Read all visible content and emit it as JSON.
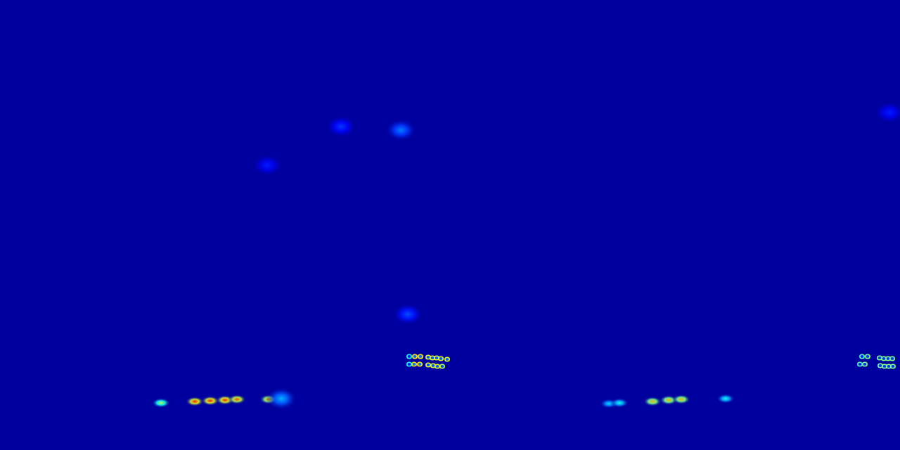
{
  "chart_data": [
    {
      "type": "heatmap",
      "tick_labels": false,
      "xlim": [
        0,
        640
      ],
      "ylim": [
        640,
        0
      ],
      "value_range": [
        0,
        1
      ],
      "blobs": {
        "x": [
          229,
          277,
          299,
          320,
          337,
          382,
          400,
          570,
          485,
          380,
          580
        ],
        "y": [
          573,
          571,
          570,
          569,
          568,
          568,
          567,
          185,
          180,
          235,
          447
        ],
        "values": [
          0.55,
          0.85,
          0.85,
          0.85,
          0.8,
          0.75,
          0.3,
          0.25,
          0.18,
          0.15,
          0.2
        ]
      },
      "rings": {
        "x": [
          582,
          590,
          598,
          609,
          615,
          621,
          627,
          636,
          582,
          589,
          597,
          609,
          616,
          622,
          629
        ],
        "y": [
          507,
          507,
          507,
          508,
          509,
          509,
          510,
          511,
          518,
          518,
          518,
          519,
          520,
          521,
          521
        ],
        "values": [
          0.4,
          0.65,
          0.65,
          0.6,
          0.6,
          0.6,
          0.6,
          0.6,
          0.4,
          0.65,
          0.65,
          0.6,
          0.6,
          0.6,
          0.55
        ]
      }
    },
    {
      "type": "heatmap",
      "tick_labels": false,
      "xlim": [
        0,
        640
      ],
      "ylim": [
        640,
        0
      ],
      "value_range": [
        0,
        1
      ],
      "blobs": {
        "x": [
          226,
          241,
          288,
          311,
          329,
          392,
          625
        ],
        "y": [
          574,
          573,
          571,
          569,
          568,
          567,
          160
        ],
        "values": [
          0.35,
          0.4,
          0.7,
          0.7,
          0.7,
          0.4,
          0.15
        ]
      },
      "rings": {
        "x": [
          586,
          594,
          611,
          617,
          623,
          629,
          583,
          590,
          612,
          618,
          624,
          630
        ],
        "y": [
          507,
          507,
          509,
          510,
          510,
          510,
          518,
          518,
          520,
          521,
          521,
          521
        ],
        "values": [
          0.45,
          0.5,
          0.5,
          0.5,
          0.5,
          0.5,
          0.45,
          0.5,
          0.5,
          0.5,
          0.5,
          0.5
        ]
      }
    }
  ]
}
